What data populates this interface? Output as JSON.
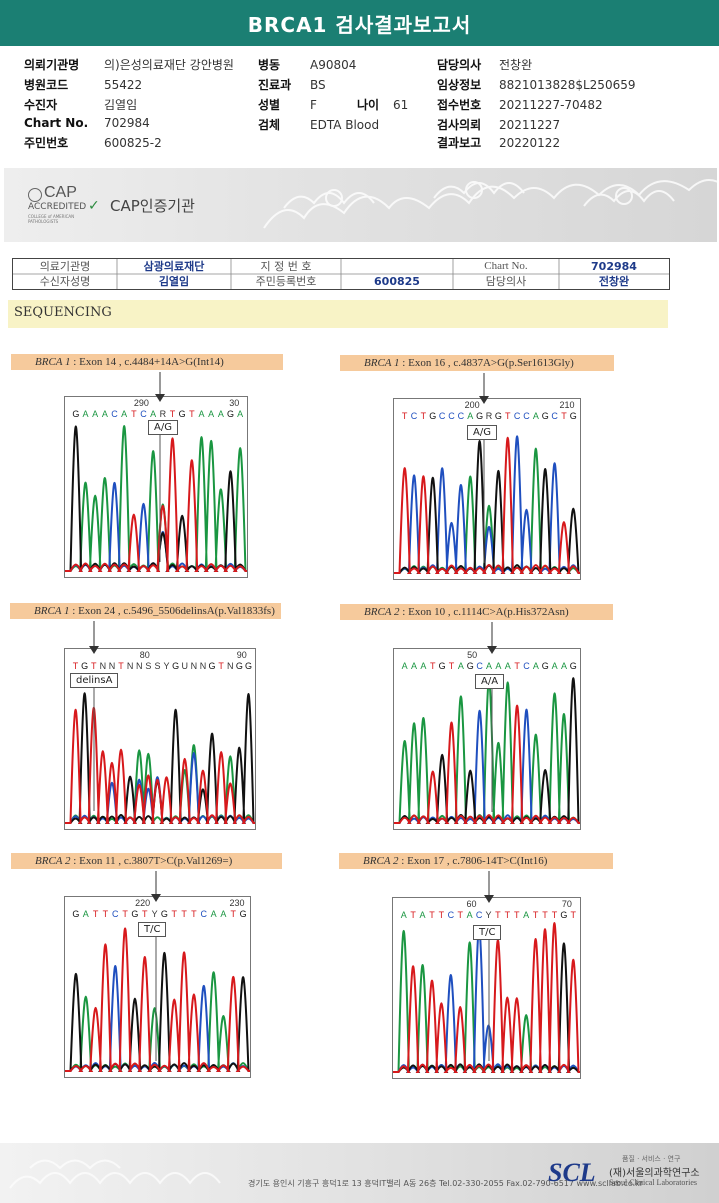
{
  "title": "BRCA1 검사결과보고서",
  "header": {
    "col1": [
      {
        "label": "의뢰기관명",
        "value": "의)은성의료재단 강안병원"
      },
      {
        "label": "병원코드",
        "value": "55422"
      },
      {
        "label": "수진자",
        "value": "김열임"
      },
      {
        "label": "Chart No.",
        "value": "702984"
      },
      {
        "label": "주민번호",
        "value": "600825-2"
      }
    ],
    "col2": [
      {
        "label": "병동",
        "value": "A90804"
      },
      {
        "label": "진료과",
        "value": "BS"
      },
      {
        "label": "성별",
        "value": "F"
      },
      {
        "label": "검체",
        "value": "EDTA Blood"
      }
    ],
    "age": {
      "label": "나이",
      "value": "61"
    },
    "col3": [
      {
        "label": "담당의사",
        "value": "전창완"
      },
      {
        "label": "임상정보",
        "value": "8821013828$L250659"
      },
      {
        "label": "접수번호",
        "value": "20211227-70482"
      },
      {
        "label": "검사의뢰",
        "value": "20211227"
      },
      {
        "label": "결과보고",
        "value": "20220122"
      }
    ]
  },
  "cap": {
    "logo_title": "CAP",
    "logo_sub": "ACCREDITED",
    "logo_small": "COLLEGE of AMERICAN PATHOLOGISTS",
    "text": "CAP인증기관"
  },
  "info_table": {
    "r1": {
      "l1": "의료기관명",
      "v1": "삼광의료재단",
      "l2": "지 정 번 호",
      "v2": "",
      "l3": "Chart No.",
      "v3": "702984"
    },
    "r2": {
      "l1": "수신자성명",
      "v1": "김열임",
      "l2": "주민등록번호",
      "v2": "600825",
      "l3": "담당의사",
      "v3": "전창완"
    }
  },
  "section": "SEQUENCING",
  "panels": [
    {
      "gene": "BRCA 1",
      "desc": " : Exon 14 , c.4484+14A>G(Int14)",
      "seq": "G A A A C A T C A R T G T A A A G A",
      "pos_left": "290",
      "pos_right": "30",
      "callout": "A/G"
    },
    {
      "gene": "BRCA 1",
      "desc": " : Exon 16 , c.4837A>G(p.Ser1613Gly)",
      "seq": "T C T G C C C A G R G T C C A G C T G",
      "pos_left": "200",
      "pos_right": "210",
      "callout": "A/G"
    },
    {
      "gene": "BRCA 1",
      "desc": " : Exon 24 , c.5496_5506delinsA(p.Val1833fs)",
      "seq": "T G T N N T N N S S Y G U N N G T N G G",
      "pos_left": "80",
      "pos_right": "90",
      "callout": "delinsA"
    },
    {
      "gene": "BRCA 2",
      "desc": " : Exon 10 , c.1114C>A(p.His372Asn)",
      "seq": "A A A T G T A G C A A A T C A G A A G",
      "pos_left": "50",
      "pos_right": "",
      "callout": "A/A"
    },
    {
      "gene": "BRCA 2",
      "desc": " : Exon 11 , c.3807T>C(p.Val1269=)",
      "seq": "G A T T C T G T Y G T T T C A A T G",
      "pos_left": "220",
      "pos_right": "230",
      "callout": "T/C"
    },
    {
      "gene": "BRCA 2",
      "desc": " : Exon 17 , c.7806-14T>C(Int16)",
      "seq": "A T A T T C T A C Y T T T A T T T G T",
      "pos_left": "60",
      "pos_right": "70",
      "callout": "T/C"
    }
  ],
  "footer": {
    "address": "경기도 용인시 기흥구 흥덕1로 13 흥덕IT밸리 A동 26층  Tel.02-330-2055  Fax.02-790-6517  www.scllab.co.kr",
    "logo": "SCL",
    "tagline": "품질 · 서비스 · 연구",
    "name_ko": "(재)서울의과학연구소",
    "name_en": "Seoul Clinical Laboratories"
  },
  "colors": {
    "title_bg": "#1b7f73",
    "label_bg": "#f6ca9c",
    "seq_bg": "#f8f3c6",
    "A": "#1a9641",
    "C": "#1f4fbf",
    "G": "#111111",
    "T": "#d7191c"
  }
}
